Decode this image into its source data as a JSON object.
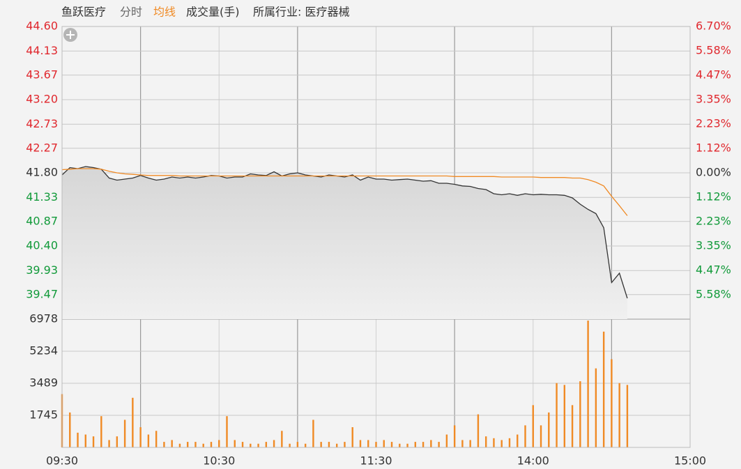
{
  "chart_data": [
    {
      "type": "line",
      "title": "鱼跃医疗",
      "subtitle": "分时",
      "annotation": "所属行业: 医疗器械",
      "x": [
        0,
        3,
        6,
        9,
        12,
        15,
        18,
        21,
        24,
        27,
        30,
        33,
        36,
        39,
        42,
        45,
        48,
        51,
        54,
        57,
        60,
        63,
        66,
        69,
        72,
        75,
        78,
        81,
        84,
        87,
        90,
        93,
        96,
        99,
        102,
        105,
        108,
        111,
        114,
        117,
        120,
        123,
        126,
        129,
        132,
        135,
        138,
        141,
        144,
        147,
        150,
        153,
        156,
        159,
        162,
        165,
        168,
        171,
        174,
        177,
        180,
        183,
        186,
        189,
        192,
        195,
        198,
        201,
        204,
        207,
        210,
        213,
        216
      ],
      "series": [
        {
          "color": "#333333",
          "values": [
            41.76,
            41.9,
            41.88,
            41.92,
            41.9,
            41.87,
            41.7,
            41.66,
            41.68,
            41.7,
            41.75,
            41.7,
            41.66,
            41.68,
            41.72,
            41.7,
            41.72,
            41.7,
            41.72,
            41.75,
            41.74,
            41.7,
            41.72,
            41.72,
            41.78,
            41.76,
            41.75,
            41.82,
            41.74,
            41.78,
            41.8,
            41.76,
            41.74,
            41.72,
            41.76,
            41.74,
            41.72,
            41.76,
            41.66,
            41.72,
            41.68,
            41.68,
            41.66,
            41.67,
            41.68,
            41.66,
            41.64,
            41.65,
            41.6,
            41.6,
            41.58,
            41.55,
            41.54,
            41.5,
            41.48,
            41.4,
            41.38,
            41.4,
            41.37,
            41.4,
            41.38,
            41.39,
            41.38,
            41.38,
            41.37,
            41.32,
            41.2,
            41.1,
            41.02,
            40.75,
            39.7,
            39.88,
            39.4
          ]
        },
        {
          "name": "均线",
          "color": "#f08a24",
          "values": [
            41.86,
            41.87,
            41.88,
            41.88,
            41.88,
            41.87,
            41.83,
            41.8,
            41.78,
            41.77,
            41.76,
            41.75,
            41.75,
            41.75,
            41.75,
            41.74,
            41.74,
            41.74,
            41.74,
            41.74,
            41.74,
            41.74,
            41.74,
            41.74,
            41.74,
            41.74,
            41.74,
            41.74,
            41.74,
            41.74,
            41.74,
            41.74,
            41.74,
            41.74,
            41.74,
            41.74,
            41.74,
            41.74,
            41.74,
            41.74,
            41.74,
            41.74,
            41.74,
            41.74,
            41.74,
            41.74,
            41.74,
            41.74,
            41.74,
            41.74,
            41.73,
            41.73,
            41.73,
            41.73,
            41.73,
            41.73,
            41.72,
            41.72,
            41.72,
            41.72,
            41.72,
            41.71,
            41.71,
            41.71,
            41.71,
            41.7,
            41.7,
            41.67,
            41.62,
            41.55,
            41.35,
            41.17,
            40.98
          ]
        }
      ],
      "xlim": [
        0,
        240
      ],
      "ylim": [
        39.0,
        44.6
      ],
      "yticks": [
        {
          "value": 44.6,
          "label": "44.60"
        },
        44.13,
        43.67,
        {
          "value": 43.2,
          "label": "43.20"
        },
        42.73,
        42.27,
        {
          "value": 41.8,
          "label": "41.80"
        },
        41.33,
        40.87,
        {
          "value": 40.4,
          "label": "40.40"
        },
        39.93,
        39.47
      ],
      "y2lim": [
        -6.7,
        6.7
      ],
      "y2ticks": [
        {
          "value": 6.7,
          "label": "6.70%"
        },
        {
          "value": 5.58,
          "label": "5.58%"
        },
        {
          "value": 4.47,
          "label": "4.47%"
        },
        {
          "value": 3.35,
          "label": "3.35%"
        },
        {
          "value": 2.23,
          "label": "2.23%"
        },
        {
          "value": 1.12,
          "label": "1.12%"
        },
        {
          "value": 0,
          "label": "0.00%"
        },
        {
          "value": -1.12,
          "label": "1.12%"
        },
        {
          "value": -2.23,
          "label": "2.23%"
        },
        {
          "value": -3.35,
          "label": "3.35%"
        },
        {
          "value": -4.47,
          "label": "4.47%"
        },
        {
          "value": -5.58,
          "label": "5.58%"
        }
      ],
      "grid": true
    },
    {
      "type": "bar",
      "x": [
        0,
        3,
        6,
        9,
        12,
        15,
        18,
        21,
        24,
        27,
        30,
        33,
        36,
        39,
        42,
        45,
        48,
        51,
        54,
        57,
        60,
        63,
        66,
        69,
        72,
        75,
        78,
        81,
        84,
        87,
        90,
        93,
        96,
        99,
        102,
        105,
        108,
        111,
        114,
        117,
        120,
        123,
        126,
        129,
        132,
        135,
        138,
        141,
        144,
        147,
        150,
        153,
        156,
        159,
        162,
        165,
        168,
        171,
        174,
        177,
        180,
        183,
        186,
        189,
        192,
        195,
        198,
        201,
        204,
        207,
        210,
        213,
        216
      ],
      "series": [
        {
          "name": "成交量(手)",
          "color": "#f08a24",
          "values": [
            2900,
            1900,
            800,
            700,
            600,
            1700,
            400,
            600,
            1500,
            2700,
            1100,
            700,
            900,
            300,
            400,
            200,
            300,
            300,
            200,
            300,
            400,
            1700,
            400,
            300,
            200,
            200,
            300,
            400,
            900,
            200,
            300,
            200,
            1500,
            300,
            300,
            200,
            300,
            1100,
            400,
            400,
            300,
            400,
            300,
            200,
            200,
            300,
            300,
            400,
            300,
            700,
            1200,
            400,
            400,
            1800,
            600,
            500,
            400,
            500,
            700,
            1200,
            2300,
            1200,
            1900,
            3500,
            3400,
            2300,
            3600,
            6900,
            4300,
            6300,
            4800,
            3500,
            3400
          ]
        }
      ],
      "xlim": [
        0,
        240
      ],
      "xticks": [
        {
          "value": 0,
          "label": "09:30"
        },
        {
          "value": 60,
          "label": "10:30"
        },
        {
          "value": 120,
          "label": "11:30"
        },
        {
          "value": 180,
          "label": "14:00"
        },
        {
          "value": 240,
          "label": "15:00"
        }
      ],
      "ylim": [
        0,
        6978
      ],
      "yticks": [
        1745,
        3489,
        5234,
        6978
      ],
      "grid": true
    }
  ]
}
